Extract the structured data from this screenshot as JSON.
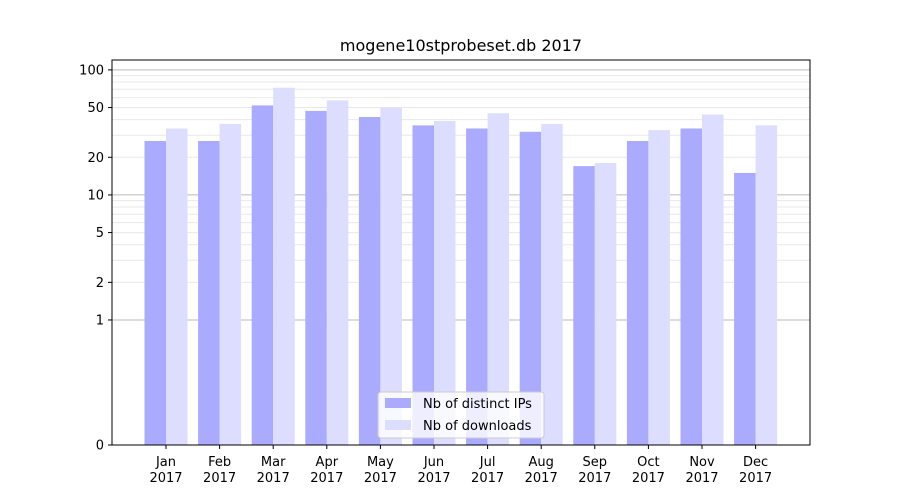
{
  "chart_data": {
    "type": "bar",
    "title": "mogene10stprobeset.db 2017",
    "xlabel": "",
    "ylabel": "",
    "yscale": "symlog",
    "ylim": [
      0,
      120
    ],
    "yticks": [
      0,
      1,
      2,
      5,
      10,
      20,
      50,
      100
    ],
    "grid": true,
    "legend_position": "lower-center",
    "categories": [
      [
        "Jan",
        "2017"
      ],
      [
        "Feb",
        "2017"
      ],
      [
        "Mar",
        "2017"
      ],
      [
        "Apr",
        "2017"
      ],
      [
        "May",
        "2017"
      ],
      [
        "Jun",
        "2017"
      ],
      [
        "Jul",
        "2017"
      ],
      [
        "Aug",
        "2017"
      ],
      [
        "Sep",
        "2017"
      ],
      [
        "Oct",
        "2017"
      ],
      [
        "Nov",
        "2017"
      ],
      [
        "Dec",
        "2017"
      ]
    ],
    "series": [
      {
        "name": "Nb of distinct IPs",
        "color": "#aaaaff",
        "values": [
          27,
          27,
          52,
          47,
          42,
          36,
          34,
          32,
          17,
          27,
          34,
          15
        ]
      },
      {
        "name": "Nb of downloads",
        "color": "#ddddff",
        "values": [
          34,
          37,
          72,
          57,
          50,
          39,
          45,
          37,
          18,
          33,
          44,
          36
        ]
      }
    ]
  }
}
